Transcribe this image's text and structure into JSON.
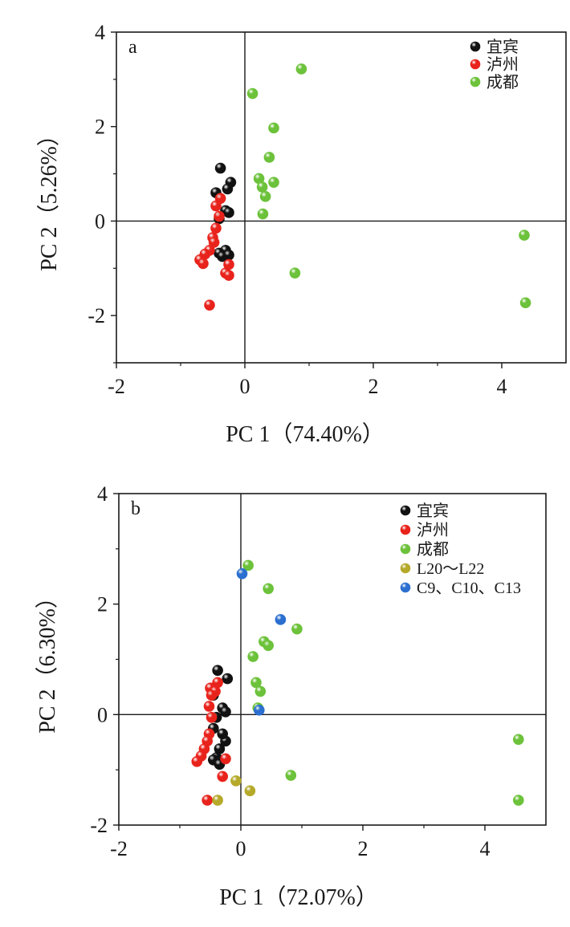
{
  "chart_data": [
    {
      "type": "scatter",
      "panel_label": "a",
      "xlabel": "PC 1（74.40%）",
      "ylabel": "PC 2（5.26%）",
      "xlim": [
        -2,
        5
      ],
      "ylim": [
        -3,
        4
      ],
      "xticks": [
        "-2",
        "0",
        "2",
        "4"
      ],
      "yticks": [
        "-2",
        "0",
        "2",
        "4"
      ],
      "xtick_values": [
        -2,
        0,
        2,
        4
      ],
      "ytick_values": [
        -2,
        0,
        2,
        4
      ],
      "legend_position": "top-right",
      "series": [
        {
          "name": "宜宾",
          "color": "#111111",
          "points": [
            [
              -0.38,
              1.12
            ],
            [
              -0.22,
              0.82
            ],
            [
              -0.27,
              0.68
            ],
            [
              -0.45,
              0.6
            ],
            [
              -0.3,
              0.22
            ],
            [
              -0.25,
              0.18
            ],
            [
              -0.4,
              0.05
            ],
            [
              -0.3,
              -0.62
            ],
            [
              -0.4,
              -0.68
            ],
            [
              -0.35,
              -0.75
            ],
            [
              -0.25,
              -0.72
            ]
          ]
        },
        {
          "name": "泸州",
          "color": "#e8231c",
          "points": [
            [
              -0.38,
              0.48
            ],
            [
              -0.45,
              0.32
            ],
            [
              -0.4,
              0.1
            ],
            [
              -0.45,
              -0.15
            ],
            [
              -0.5,
              -0.35
            ],
            [
              -0.48,
              -0.45
            ],
            [
              -0.55,
              -0.62
            ],
            [
              -0.62,
              -0.7
            ],
            [
              -0.7,
              -0.82
            ],
            [
              -0.65,
              -0.9
            ],
            [
              -0.25,
              -0.92
            ],
            [
              -0.3,
              -1.1
            ],
            [
              -0.25,
              -1.15
            ],
            [
              -0.55,
              -1.78
            ]
          ]
        },
        {
          "name": "成都",
          "color": "#6cc23a",
          "points": [
            [
              0.88,
              3.22
            ],
            [
              0.12,
              2.7
            ],
            [
              0.45,
              1.97
            ],
            [
              0.38,
              1.35
            ],
            [
              0.22,
              0.9
            ],
            [
              0.27,
              0.72
            ],
            [
              0.45,
              0.82
            ],
            [
              0.32,
              0.52
            ],
            [
              0.28,
              0.15
            ],
            [
              0.78,
              -1.1
            ],
            [
              4.35,
              -0.3
            ],
            [
              4.37,
              -1.73
            ]
          ]
        }
      ]
    },
    {
      "type": "scatter",
      "panel_label": "b",
      "xlabel": "PC 1（72.07%）",
      "ylabel": "PC 2（6.30%）",
      "xlim": [
        -2,
        5
      ],
      "ylim": [
        -2,
        4
      ],
      "xticks": [
        "-2",
        "0",
        "2",
        "4"
      ],
      "yticks": [
        "-2",
        "0",
        "2",
        "4"
      ],
      "xtick_values": [
        -2,
        0,
        2,
        4
      ],
      "ytick_values": [
        -2,
        0,
        2,
        4
      ],
      "legend_position": "top-right",
      "series": [
        {
          "name": "宜宾",
          "color": "#111111",
          "points": [
            [
              -0.38,
              0.8
            ],
            [
              -0.22,
              0.65
            ],
            [
              -0.45,
              0.35
            ],
            [
              -0.3,
              0.12
            ],
            [
              -0.25,
              0.05
            ],
            [
              -0.4,
              -0.05
            ],
            [
              -0.45,
              -0.25
            ],
            [
              -0.25,
              -0.48
            ],
            [
              -0.35,
              -0.62
            ],
            [
              -0.4,
              -0.78
            ],
            [
              -0.45,
              -0.82
            ],
            [
              -0.35,
              -0.9
            ],
            [
              -0.3,
              -0.35
            ]
          ]
        },
        {
          "name": "泸州",
          "color": "#e8231c",
          "points": [
            [
              -0.38,
              0.58
            ],
            [
              -0.5,
              0.48
            ],
            [
              -0.42,
              0.42
            ],
            [
              -0.48,
              0.35
            ],
            [
              -0.52,
              0.15
            ],
            [
              -0.48,
              -0.05
            ],
            [
              -0.52,
              -0.35
            ],
            [
              -0.55,
              -0.48
            ],
            [
              -0.6,
              -0.62
            ],
            [
              -0.65,
              -0.75
            ],
            [
              -0.72,
              -0.85
            ],
            [
              -0.25,
              -0.8
            ],
            [
              -0.3,
              -1.12
            ],
            [
              -0.55,
              -1.55
            ]
          ]
        },
        {
          "name": "成都",
          "color": "#6cc23a",
          "points": [
            [
              0.12,
              2.7
            ],
            [
              0.45,
              2.28
            ],
            [
              0.92,
              1.55
            ],
            [
              0.38,
              1.32
            ],
            [
              0.45,
              1.25
            ],
            [
              0.2,
              1.05
            ],
            [
              0.25,
              0.58
            ],
            [
              0.32,
              0.42
            ],
            [
              0.28,
              0.12
            ],
            [
              0.82,
              -1.1
            ],
            [
              4.55,
              -0.45
            ],
            [
              4.55,
              -1.55
            ]
          ]
        },
        {
          "name": "L20～L22",
          "color": "#b5a92a",
          "points": [
            [
              -0.08,
              -1.2
            ],
            [
              0.15,
              -1.38
            ],
            [
              -0.38,
              -1.55
            ]
          ]
        },
        {
          "name": "C9、C10、C13",
          "color": "#2b6fd0",
          "points": [
            [
              0.02,
              2.55
            ],
            [
              0.65,
              1.72
            ],
            [
              0.3,
              0.08
            ]
          ]
        }
      ]
    }
  ]
}
